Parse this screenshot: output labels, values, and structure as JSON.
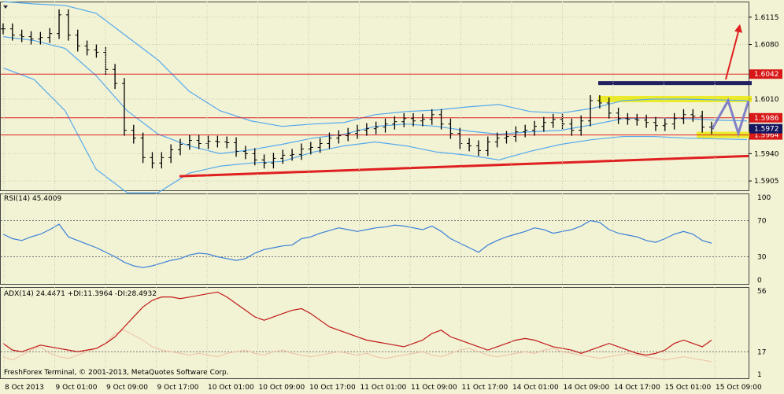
{
  "chart_data": {
    "type": "line",
    "footer": "FreshForex Terminal, © 2001-2013, MetaQuotes Software Corp.",
    "x_labels": [
      "8 Oct 2013",
      "9 Oct 01:00",
      "9 Oct 09:00",
      "9 Oct 17:00",
      "10 Oct 01:00",
      "10 Oct 09:00",
      "10 Oct 17:00",
      "11 Oct 01:00",
      "11 Oct 09:00",
      "11 Oct 17:00",
      "14 Oct 01:00",
      "14 Oct 09:00",
      "14 Oct 17:00",
      "15 Oct 01:00",
      "15 Oct 09:00"
    ],
    "colors": {
      "background": "#f2f2d4",
      "grid": "#c8c8b0",
      "price": "#000000",
      "bands": "#55aaee",
      "level": "#dd2222",
      "trend": "#e02020",
      "zone": "#e8e800",
      "resistance": "#202060",
      "projection": "#8080c8",
      "rsi": "#3a80d8",
      "adx": "#c01818",
      "di": "#f0c0a8",
      "label_box": "#d81818",
      "current_box": "#151560"
    },
    "main": {
      "ylim": [
        1.5893,
        1.6135
      ],
      "ticks": [
        "1.6115",
        "1.6080",
        "1.6010",
        "1.5940",
        "1.5905"
      ],
      "levels": [
        {
          "value": 1.6042,
          "label": "1.6042"
        },
        {
          "value": 1.5986,
          "label": "1.5986"
        },
        {
          "value": 1.5964,
          "label": "1.5964"
        }
      ],
      "current": {
        "value": 1.5972,
        "label": "1.5972"
      },
      "close": [
        1.61,
        1.6092,
        1.609,
        1.6087,
        1.6089,
        1.6094,
        1.6118,
        1.6092,
        1.6078,
        1.6073,
        1.607,
        1.6048,
        1.603,
        1.597,
        1.596,
        1.5935,
        1.5928,
        1.5935,
        1.5945,
        1.5952,
        1.5957,
        1.5953,
        1.5956,
        1.5955,
        1.5954,
        1.5943,
        1.594,
        1.5932,
        1.5928,
        1.5934,
        1.5938,
        1.5939,
        1.5946,
        1.5948,
        1.5953,
        1.596,
        1.5963,
        1.5966,
        1.597,
        1.5972,
        1.5974,
        1.5978,
        1.5981,
        1.5985,
        1.5982,
        1.5984,
        1.599,
        1.5978,
        1.5966,
        1.5953,
        1.595,
        1.5944,
        1.5955,
        1.596,
        1.5962,
        1.5968,
        1.597,
        1.5975,
        1.598,
        1.5984,
        1.5978,
        1.597,
        1.5982,
        1.6008,
        1.6005,
        1.5992,
        1.5985,
        1.5984,
        1.5983,
        1.598,
        1.5976,
        1.5978,
        1.5985,
        1.599,
        1.5988,
        1.5974,
        1.5972
      ],
      "upper_band": [
        1.6135,
        1.6132,
        1.613,
        1.612,
        1.609,
        1.606,
        1.602,
        1.5995,
        1.5982,
        1.5975,
        1.5978,
        1.598,
        1.599,
        1.5994,
        1.5996,
        1.6,
        1.6003,
        1.5994,
        1.5992,
        1.5998,
        1.6008,
        1.601,
        1.601,
        1.6009,
        1.6008
      ],
      "middle_band": [
        1.609,
        1.6085,
        1.6075,
        1.604,
        1.5995,
        1.5965,
        1.595,
        1.594,
        1.5945,
        1.5952,
        1.596,
        1.5965,
        1.5975,
        1.5978,
        1.5975,
        1.5969,
        1.5965,
        1.5968,
        1.597,
        1.5977,
        1.5985,
        1.5986,
        1.5985,
        1.5983,
        1.5982
      ],
      "lower_band": [
        1.605,
        1.6035,
        1.5995,
        1.592,
        1.589,
        1.589,
        1.5915,
        1.5924,
        1.5928,
        1.593,
        1.5942,
        1.595,
        1.5955,
        1.595,
        1.5942,
        1.5938,
        1.5932,
        1.5943,
        1.5952,
        1.5958,
        1.5962,
        1.5962,
        1.596,
        1.5959,
        1.5958
      ],
      "trendline": [
        1.5911,
        1.5937
      ],
      "resistance": 1.603,
      "zone": [
        1.5964,
        1.601
      ]
    },
    "rsi": {
      "title": "RSI(14) 45.4009",
      "ylim": [
        0,
        100
      ],
      "ticks": [
        100,
        70,
        30,
        0
      ],
      "levels": [
        70,
        30
      ],
      "values": [
        55,
        50,
        48,
        52,
        55,
        60,
        66,
        52,
        48,
        44,
        40,
        35,
        30,
        24,
        20,
        18,
        20,
        23,
        26,
        28,
        32,
        34,
        33,
        30,
        28,
        26,
        28,
        34,
        38,
        40,
        42,
        43,
        50,
        52,
        56,
        59,
        62,
        60,
        58,
        60,
        62,
        63,
        65,
        64,
        62,
        60,
        64,
        58,
        50,
        45,
        40,
        35,
        43,
        48,
        52,
        55,
        58,
        62,
        60,
        56,
        58,
        60,
        64,
        70,
        68,
        60,
        56,
        54,
        52,
        48,
        46,
        50,
        55,
        58,
        55,
        48,
        45
      ]
    },
    "adx": {
      "title": "ADX(14) 24.4471 +DI:11.3964 -DI:28.4932",
      "ylim": [
        1,
        56
      ],
      "ticks": [
        56,
        17,
        1
      ],
      "level": 17,
      "adx": [
        22,
        18,
        17,
        19,
        21,
        20,
        19,
        18,
        17,
        18,
        19,
        22,
        26,
        32,
        38,
        44,
        48,
        50,
        50,
        49,
        50,
        51,
        52,
        53,
        50,
        46,
        42,
        38,
        36,
        38,
        40,
        42,
        43,
        40,
        36,
        32,
        30,
        28,
        26,
        24,
        23,
        22,
        21,
        20,
        22,
        24,
        28,
        30,
        26,
        24,
        22,
        20,
        18,
        20,
        22,
        24,
        25,
        24,
        22,
        20,
        19,
        18,
        16,
        18,
        20,
        22,
        20,
        18,
        16,
        15,
        16,
        18,
        22,
        24,
        22,
        20,
        24
      ],
      "di": [
        14,
        12,
        15,
        18,
        20,
        16,
        14,
        13,
        15,
        17,
        19,
        22,
        28,
        30,
        27,
        24,
        20,
        18,
        17,
        16,
        15,
        16,
        15,
        14,
        16,
        17,
        18,
        16,
        15,
        17,
        18,
        16,
        15,
        14,
        15,
        16,
        17,
        16,
        15,
        16,
        14,
        13,
        14,
        15,
        16,
        17,
        15,
        14,
        16,
        18,
        19,
        17,
        15,
        14,
        15,
        16,
        17,
        16,
        18,
        19,
        17,
        16,
        15,
        14,
        13,
        14,
        15,
        16,
        15,
        14,
        13,
        12,
        13,
        14,
        13,
        12,
        11
      ]
    }
  }
}
